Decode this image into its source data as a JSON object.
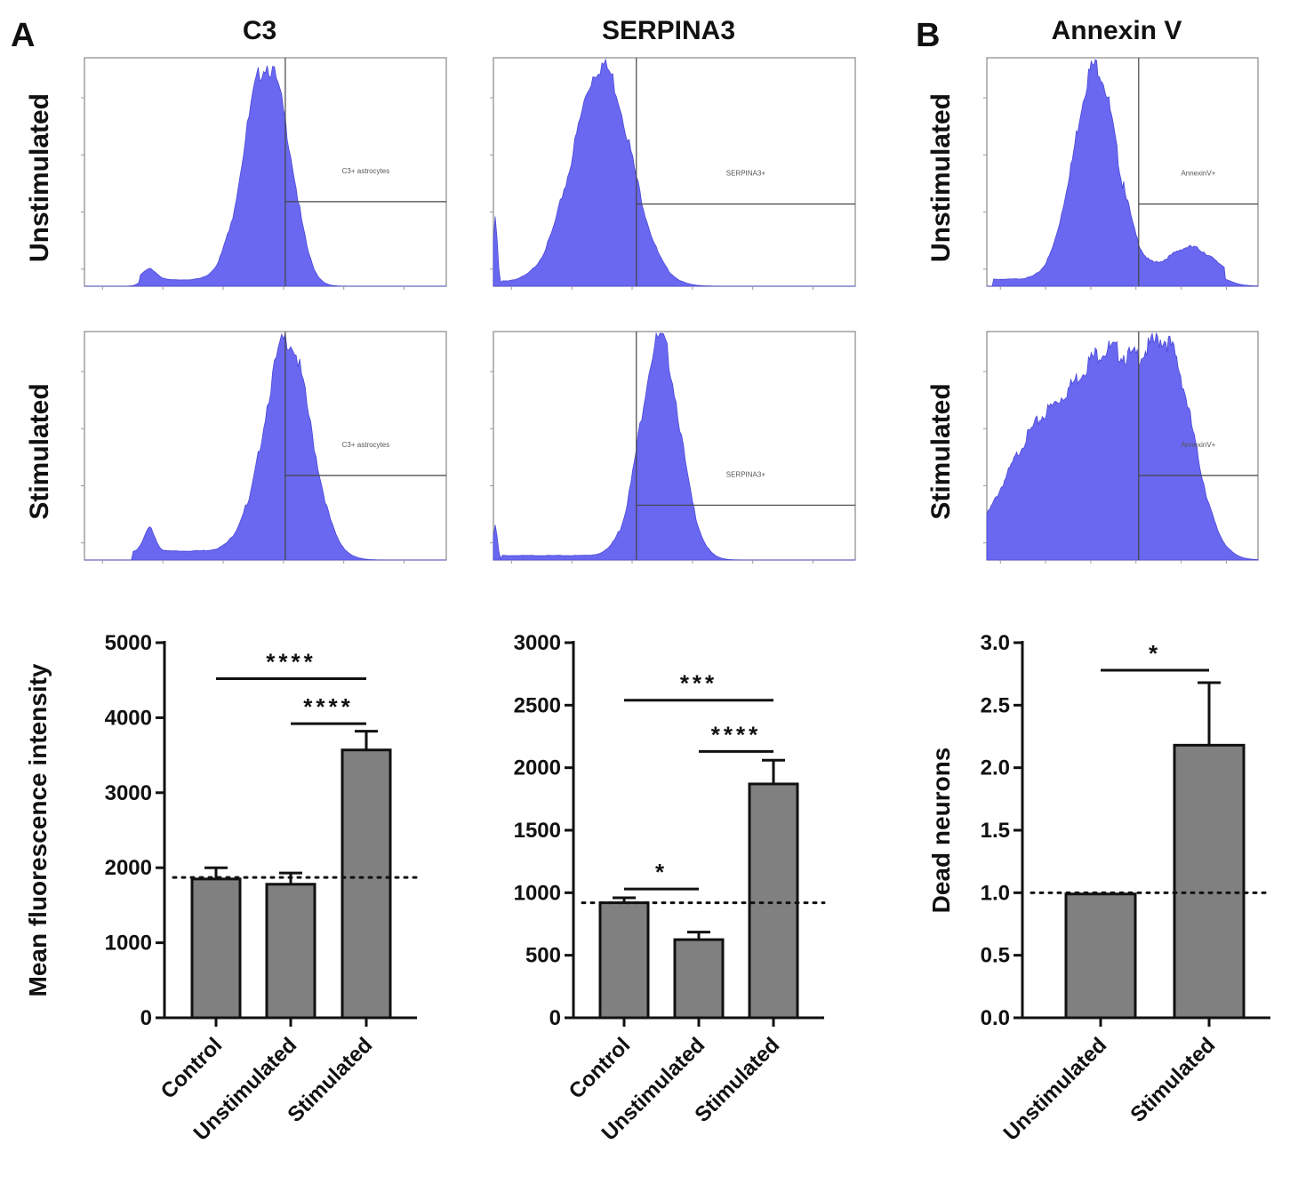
{
  "panels": {
    "a": "A",
    "b": "B"
  },
  "column_titles": [
    "C3",
    "SERPINA3",
    "Annexin V"
  ],
  "row_labels": [
    "Unstimulated",
    "Stimulated"
  ],
  "histogram_gates": {
    "c3": "C3+ astrocytes",
    "serpina3": "SERPINA3+",
    "annexin": "AnnexinV+"
  },
  "colors": {
    "histogram_fill": "#6a68f0",
    "bar_fill": "#808080",
    "axis": "#111111"
  },
  "chart_data": [
    {
      "type": "bar",
      "id": "c3",
      "categories": [
        "Control",
        "Unstimulated",
        "Stimulated"
      ],
      "values": [
        1850,
        1780,
        3570
      ],
      "errors": [
        150,
        150,
        250
      ],
      "ylabel": "Mean fluorescence intensity",
      "ylim": [
        0,
        5000
      ],
      "yticks": [
        "0",
        "1000",
        "2000",
        "3000",
        "4000",
        "5000"
      ],
      "reference_line": 1870,
      "significance": [
        {
          "from": 0,
          "to": 2,
          "label": "****",
          "y": 4520
        },
        {
          "from": 1,
          "to": 2,
          "label": "****",
          "y": 3920
        }
      ]
    },
    {
      "type": "bar",
      "id": "serpina3",
      "categories": [
        "Control",
        "Unstimulated",
        "Stimulated"
      ],
      "values": [
        920,
        625,
        1870
      ],
      "errors": [
        40,
        60,
        190
      ],
      "ylabel": "",
      "ylim": [
        0,
        3000
      ],
      "yticks": [
        "0",
        "500",
        "1000",
        "1500",
        "2000",
        "2500",
        "3000"
      ],
      "reference_line": 920,
      "significance": [
        {
          "from": 0,
          "to": 2,
          "label": "***",
          "y": 2540
        },
        {
          "from": 1,
          "to": 2,
          "label": "****",
          "y": 2130
        },
        {
          "from": 0,
          "to": 1,
          "label": "*",
          "y": 1030
        }
      ]
    },
    {
      "type": "bar",
      "id": "annexin",
      "categories": [
        "Unstimulated",
        "Stimulated"
      ],
      "values": [
        0.99,
        2.18
      ],
      "errors": [
        0,
        0.5
      ],
      "ylabel": "Dead neurons",
      "ylim": [
        0,
        3
      ],
      "yticks": [
        "0.0",
        "0.5",
        "1.0",
        "1.5",
        "2.0",
        "2.5",
        "3.0"
      ],
      "reference_line": 1.0,
      "significance": [
        {
          "from": 0,
          "to": 1,
          "label": "*",
          "y": 2.78
        }
      ]
    }
  ]
}
